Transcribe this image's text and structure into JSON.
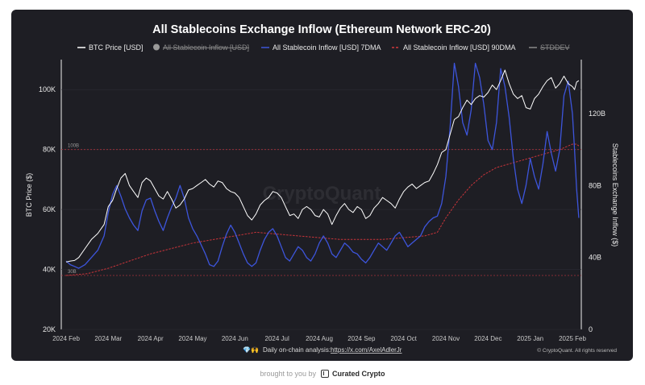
{
  "chart_data": {
    "type": "line",
    "title": "All Stablecoins Exchange Inflow (Ethereum Network ERC-20)",
    "legend": [
      {
        "label": "BTC Price [USD]",
        "color": "#ffffff",
        "style": "line"
      },
      {
        "label": "All Stablecoin Inflow [USD]",
        "color": "#8a8a8a",
        "style": "dot-strikethrough"
      },
      {
        "label": "All Stablecoin Inflow [USD] 7DMA",
        "color": "#3f56d8",
        "style": "line"
      },
      {
        "label": "All Stablecoin Inflow [USD] 90DMA",
        "color": "#d0383c",
        "style": "dashed"
      },
      {
        "label": "STDDEV",
        "color": "#8a8a8a",
        "style": "line-strikethrough"
      }
    ],
    "legend_position": "top",
    "ylabel_left": "BTC Price ($)",
    "ylabel_right": "Stablecoins Exchange Inflow ($)",
    "y_left_ticks": [
      "20K",
      "40K",
      "60K",
      "80K",
      "100K"
    ],
    "y_left_range": [
      20000,
      110000
    ],
    "y_right_ticks": [
      "0",
      "40B",
      "80B",
      "120B"
    ],
    "y_right_range": [
      0,
      150
    ],
    "x_ticks": [
      "2024 Feb",
      "2024 Mar",
      "2024 Apr",
      "2024 May",
      "2024 Jun",
      "2024 Jul",
      "2024 Aug",
      "2024 Sep",
      "2024 Oct",
      "2024 Nov",
      "2024 Dec",
      "2025 Jan",
      "2025 Feb"
    ],
    "reference_lines": [
      {
        "label": "100B",
        "value": 100
      },
      {
        "label": "30B",
        "value": 30
      }
    ],
    "watermark": "CryptoQuant",
    "copyright": "© CryptoQuant. All rights reserved",
    "analysis_text": "Daily on-chain analysis:",
    "analysis_link": "https://x.com/AxelAdlerJr",
    "analysis_emoji": "💎🙌",
    "series": [
      {
        "name": "BTC Price [USD]",
        "axis": "left",
        "points": [
          [
            0,
            42500
          ],
          [
            0.1,
            42800
          ],
          [
            0.2,
            43000
          ],
          [
            0.3,
            44000
          ],
          [
            0.45,
            47000
          ],
          [
            0.6,
            50000
          ],
          [
            0.75,
            52000
          ],
          [
            0.9,
            55000
          ],
          [
            1.0,
            61000
          ],
          [
            1.1,
            63000
          ],
          [
            1.2,
            67000
          ],
          [
            1.3,
            70500
          ],
          [
            1.4,
            72000
          ],
          [
            1.5,
            68000
          ],
          [
            1.6,
            66000
          ],
          [
            1.7,
            64000
          ],
          [
            1.8,
            69000
          ],
          [
            1.9,
            70500
          ],
          [
            2.0,
            69500
          ],
          [
            2.1,
            67000
          ],
          [
            2.2,
            64500
          ],
          [
            2.3,
            63500
          ],
          [
            2.4,
            66000
          ],
          [
            2.5,
            63500
          ],
          [
            2.6,
            60500
          ],
          [
            2.7,
            61500
          ],
          [
            2.8,
            63500
          ],
          [
            2.9,
            66500
          ],
          [
            3.0,
            67000
          ],
          [
            3.1,
            68000
          ],
          [
            3.2,
            69000
          ],
          [
            3.3,
            70000
          ],
          [
            3.4,
            68500
          ],
          [
            3.5,
            67500
          ],
          [
            3.6,
            69500
          ],
          [
            3.7,
            69000
          ],
          [
            3.8,
            67000
          ],
          [
            3.9,
            66000
          ],
          [
            4.0,
            65500
          ],
          [
            4.1,
            64000
          ],
          [
            4.2,
            61000
          ],
          [
            4.3,
            58000
          ],
          [
            4.4,
            56500
          ],
          [
            4.5,
            58500
          ],
          [
            4.6,
            61500
          ],
          [
            4.7,
            63000
          ],
          [
            4.8,
            64000
          ],
          [
            4.9,
            66000
          ],
          [
            5.0,
            65500
          ],
          [
            5.1,
            64000
          ],
          [
            5.2,
            61000
          ],
          [
            5.3,
            58000
          ],
          [
            5.4,
            58500
          ],
          [
            5.5,
            57000
          ],
          [
            5.6,
            60000
          ],
          [
            5.7,
            61000
          ],
          [
            5.8,
            60000
          ],
          [
            5.9,
            58000
          ],
          [
            6.0,
            57500
          ],
          [
            6.1,
            60000
          ],
          [
            6.2,
            58500
          ],
          [
            6.3,
            55000
          ],
          [
            6.4,
            58000
          ],
          [
            6.5,
            60500
          ],
          [
            6.6,
            62000
          ],
          [
            6.7,
            60000
          ],
          [
            6.8,
            59000
          ],
          [
            6.9,
            61000
          ],
          [
            7.0,
            60000
          ],
          [
            7.1,
            57000
          ],
          [
            7.2,
            58000
          ],
          [
            7.3,
            60500
          ],
          [
            7.4,
            62000
          ],
          [
            7.5,
            64000
          ],
          [
            7.6,
            63000
          ],
          [
            7.7,
            62000
          ],
          [
            7.8,
            60500
          ],
          [
            7.9,
            63500
          ],
          [
            8.0,
            66000
          ],
          [
            8.1,
            67500
          ],
          [
            8.2,
            68500
          ],
          [
            8.3,
            67000
          ],
          [
            8.4,
            68000
          ],
          [
            8.5,
            69000
          ],
          [
            8.6,
            69500
          ],
          [
            8.7,
            72000
          ],
          [
            8.8,
            75000
          ],
          [
            8.9,
            79000
          ],
          [
            9.0,
            80000
          ],
          [
            9.1,
            85000
          ],
          [
            9.2,
            90000
          ],
          [
            9.3,
            91000
          ],
          [
            9.4,
            94000
          ],
          [
            9.5,
            96500
          ],
          [
            9.6,
            95000
          ],
          [
            9.7,
            97000
          ],
          [
            9.8,
            98000
          ],
          [
            9.9,
            97500
          ],
          [
            10.0,
            99000
          ],
          [
            10.1,
            101500
          ],
          [
            10.2,
            100000
          ],
          [
            10.3,
            103000
          ],
          [
            10.4,
            106500
          ],
          [
            10.5,
            102000
          ],
          [
            10.6,
            98500
          ],
          [
            10.7,
            97000
          ],
          [
            10.8,
            98000
          ],
          [
            10.9,
            94000
          ],
          [
            11.0,
            93500
          ],
          [
            11.1,
            97000
          ],
          [
            11.2,
            98500
          ],
          [
            11.3,
            101000
          ],
          [
            11.4,
            103000
          ],
          [
            11.5,
            104000
          ],
          [
            11.6,
            100500
          ],
          [
            11.7,
            102000
          ],
          [
            11.8,
            104500
          ],
          [
            11.9,
            102000
          ],
          [
            12.0,
            101000
          ],
          [
            12.05,
            100000
          ],
          [
            12.1,
            102500
          ],
          [
            12.15,
            103000
          ]
        ]
      },
      {
        "name": "All Stablecoin Inflow [USD] 7DMA",
        "axis": "right",
        "points": [
          [
            0,
            38
          ],
          [
            0.1,
            36
          ],
          [
            0.2,
            35
          ],
          [
            0.3,
            34
          ],
          [
            0.45,
            36
          ],
          [
            0.6,
            40
          ],
          [
            0.75,
            44
          ],
          [
            0.9,
            52
          ],
          [
            1.0,
            65
          ],
          [
            1.1,
            75
          ],
          [
            1.2,
            80
          ],
          [
            1.3,
            74
          ],
          [
            1.4,
            67
          ],
          [
            1.5,
            62
          ],
          [
            1.6,
            58
          ],
          [
            1.7,
            55
          ],
          [
            1.8,
            66
          ],
          [
            1.9,
            72
          ],
          [
            2.0,
            73
          ],
          [
            2.1,
            66
          ],
          [
            2.2,
            60
          ],
          [
            2.3,
            55
          ],
          [
            2.4,
            62
          ],
          [
            2.5,
            68
          ],
          [
            2.6,
            73
          ],
          [
            2.7,
            80
          ],
          [
            2.8,
            73
          ],
          [
            2.9,
            62
          ],
          [
            3.0,
            56
          ],
          [
            3.1,
            52
          ],
          [
            3.2,
            47
          ],
          [
            3.3,
            42
          ],
          [
            3.4,
            36
          ],
          [
            3.5,
            35
          ],
          [
            3.6,
            38
          ],
          [
            3.7,
            46
          ],
          [
            3.8,
            53
          ],
          [
            3.9,
            58
          ],
          [
            4.0,
            54
          ],
          [
            4.1,
            48
          ],
          [
            4.2,
            42
          ],
          [
            4.3,
            37
          ],
          [
            4.4,
            35
          ],
          [
            4.5,
            37
          ],
          [
            4.6,
            44
          ],
          [
            4.7,
            50
          ],
          [
            4.8,
            54
          ],
          [
            4.9,
            56
          ],
          [
            5.0,
            52
          ],
          [
            5.1,
            46
          ],
          [
            5.2,
            40
          ],
          [
            5.3,
            38
          ],
          [
            5.4,
            42
          ],
          [
            5.5,
            46
          ],
          [
            5.6,
            44
          ],
          [
            5.7,
            40
          ],
          [
            5.8,
            38
          ],
          [
            5.9,
            42
          ],
          [
            6.0,
            48
          ],
          [
            6.1,
            52
          ],
          [
            6.2,
            48
          ],
          [
            6.3,
            42
          ],
          [
            6.4,
            40
          ],
          [
            6.5,
            44
          ],
          [
            6.6,
            48
          ],
          [
            6.7,
            46
          ],
          [
            6.8,
            43
          ],
          [
            6.9,
            42
          ],
          [
            7.0,
            39
          ],
          [
            7.1,
            37
          ],
          [
            7.2,
            40
          ],
          [
            7.3,
            44
          ],
          [
            7.4,
            48
          ],
          [
            7.5,
            46
          ],
          [
            7.6,
            44
          ],
          [
            7.7,
            48
          ],
          [
            7.8,
            52
          ],
          [
            7.9,
            54
          ],
          [
            8.0,
            50
          ],
          [
            8.1,
            46
          ],
          [
            8.2,
            48
          ],
          [
            8.3,
            50
          ],
          [
            8.4,
            52
          ],
          [
            8.5,
            57
          ],
          [
            8.6,
            60
          ],
          [
            8.7,
            62
          ],
          [
            8.8,
            63
          ],
          [
            8.9,
            70
          ],
          [
            9.0,
            85
          ],
          [
            9.1,
            112
          ],
          [
            9.2,
            148
          ],
          [
            9.3,
            135
          ],
          [
            9.4,
            115
          ],
          [
            9.5,
            108
          ],
          [
            9.6,
            122
          ],
          [
            9.7,
            148
          ],
          [
            9.8,
            140
          ],
          [
            9.9,
            125
          ],
          [
            10.0,
            105
          ],
          [
            10.1,
            100
          ],
          [
            10.2,
            115
          ],
          [
            10.3,
            145
          ],
          [
            10.4,
            135
          ],
          [
            10.5,
            118
          ],
          [
            10.6,
            95
          ],
          [
            10.7,
            78
          ],
          [
            10.8,
            70
          ],
          [
            10.9,
            80
          ],
          [
            11.0,
            95
          ],
          [
            11.1,
            85
          ],
          [
            11.2,
            78
          ],
          [
            11.3,
            92
          ],
          [
            11.4,
            110
          ],
          [
            11.5,
            98
          ],
          [
            11.6,
            88
          ],
          [
            11.7,
            100
          ],
          [
            11.8,
            130
          ],
          [
            11.9,
            138
          ],
          [
            12.0,
            120
          ],
          [
            12.05,
            100
          ],
          [
            12.1,
            78
          ],
          [
            12.15,
            62
          ]
        ]
      },
      {
        "name": "All Stablecoin Inflow [USD] 90DMA",
        "axis": "right",
        "points": [
          [
            0,
            30
          ],
          [
            0.5,
            31
          ],
          [
            1.0,
            34
          ],
          [
            1.5,
            38
          ],
          [
            2.0,
            42
          ],
          [
            2.5,
            45
          ],
          [
            3.0,
            48
          ],
          [
            3.5,
            50
          ],
          [
            4.0,
            52
          ],
          [
            4.5,
            54
          ],
          [
            5.0,
            53
          ],
          [
            5.5,
            52
          ],
          [
            6.0,
            51
          ],
          [
            6.5,
            50
          ],
          [
            7.0,
            50
          ],
          [
            7.5,
            50
          ],
          [
            8.0,
            51
          ],
          [
            8.5,
            52
          ],
          [
            8.8,
            54
          ],
          [
            9.0,
            62
          ],
          [
            9.3,
            72
          ],
          [
            9.6,
            80
          ],
          [
            9.9,
            86
          ],
          [
            10.2,
            90
          ],
          [
            10.5,
            92
          ],
          [
            10.8,
            94
          ],
          [
            11.1,
            96
          ],
          [
            11.4,
            98
          ],
          [
            11.7,
            100
          ],
          [
            11.9,
            102
          ],
          [
            12.0,
            103
          ],
          [
            12.1,
            103
          ],
          [
            12.15,
            102
          ]
        ]
      }
    ]
  },
  "footer": {
    "brought_by": "brought to you by",
    "brand": "Curated Crypto"
  }
}
